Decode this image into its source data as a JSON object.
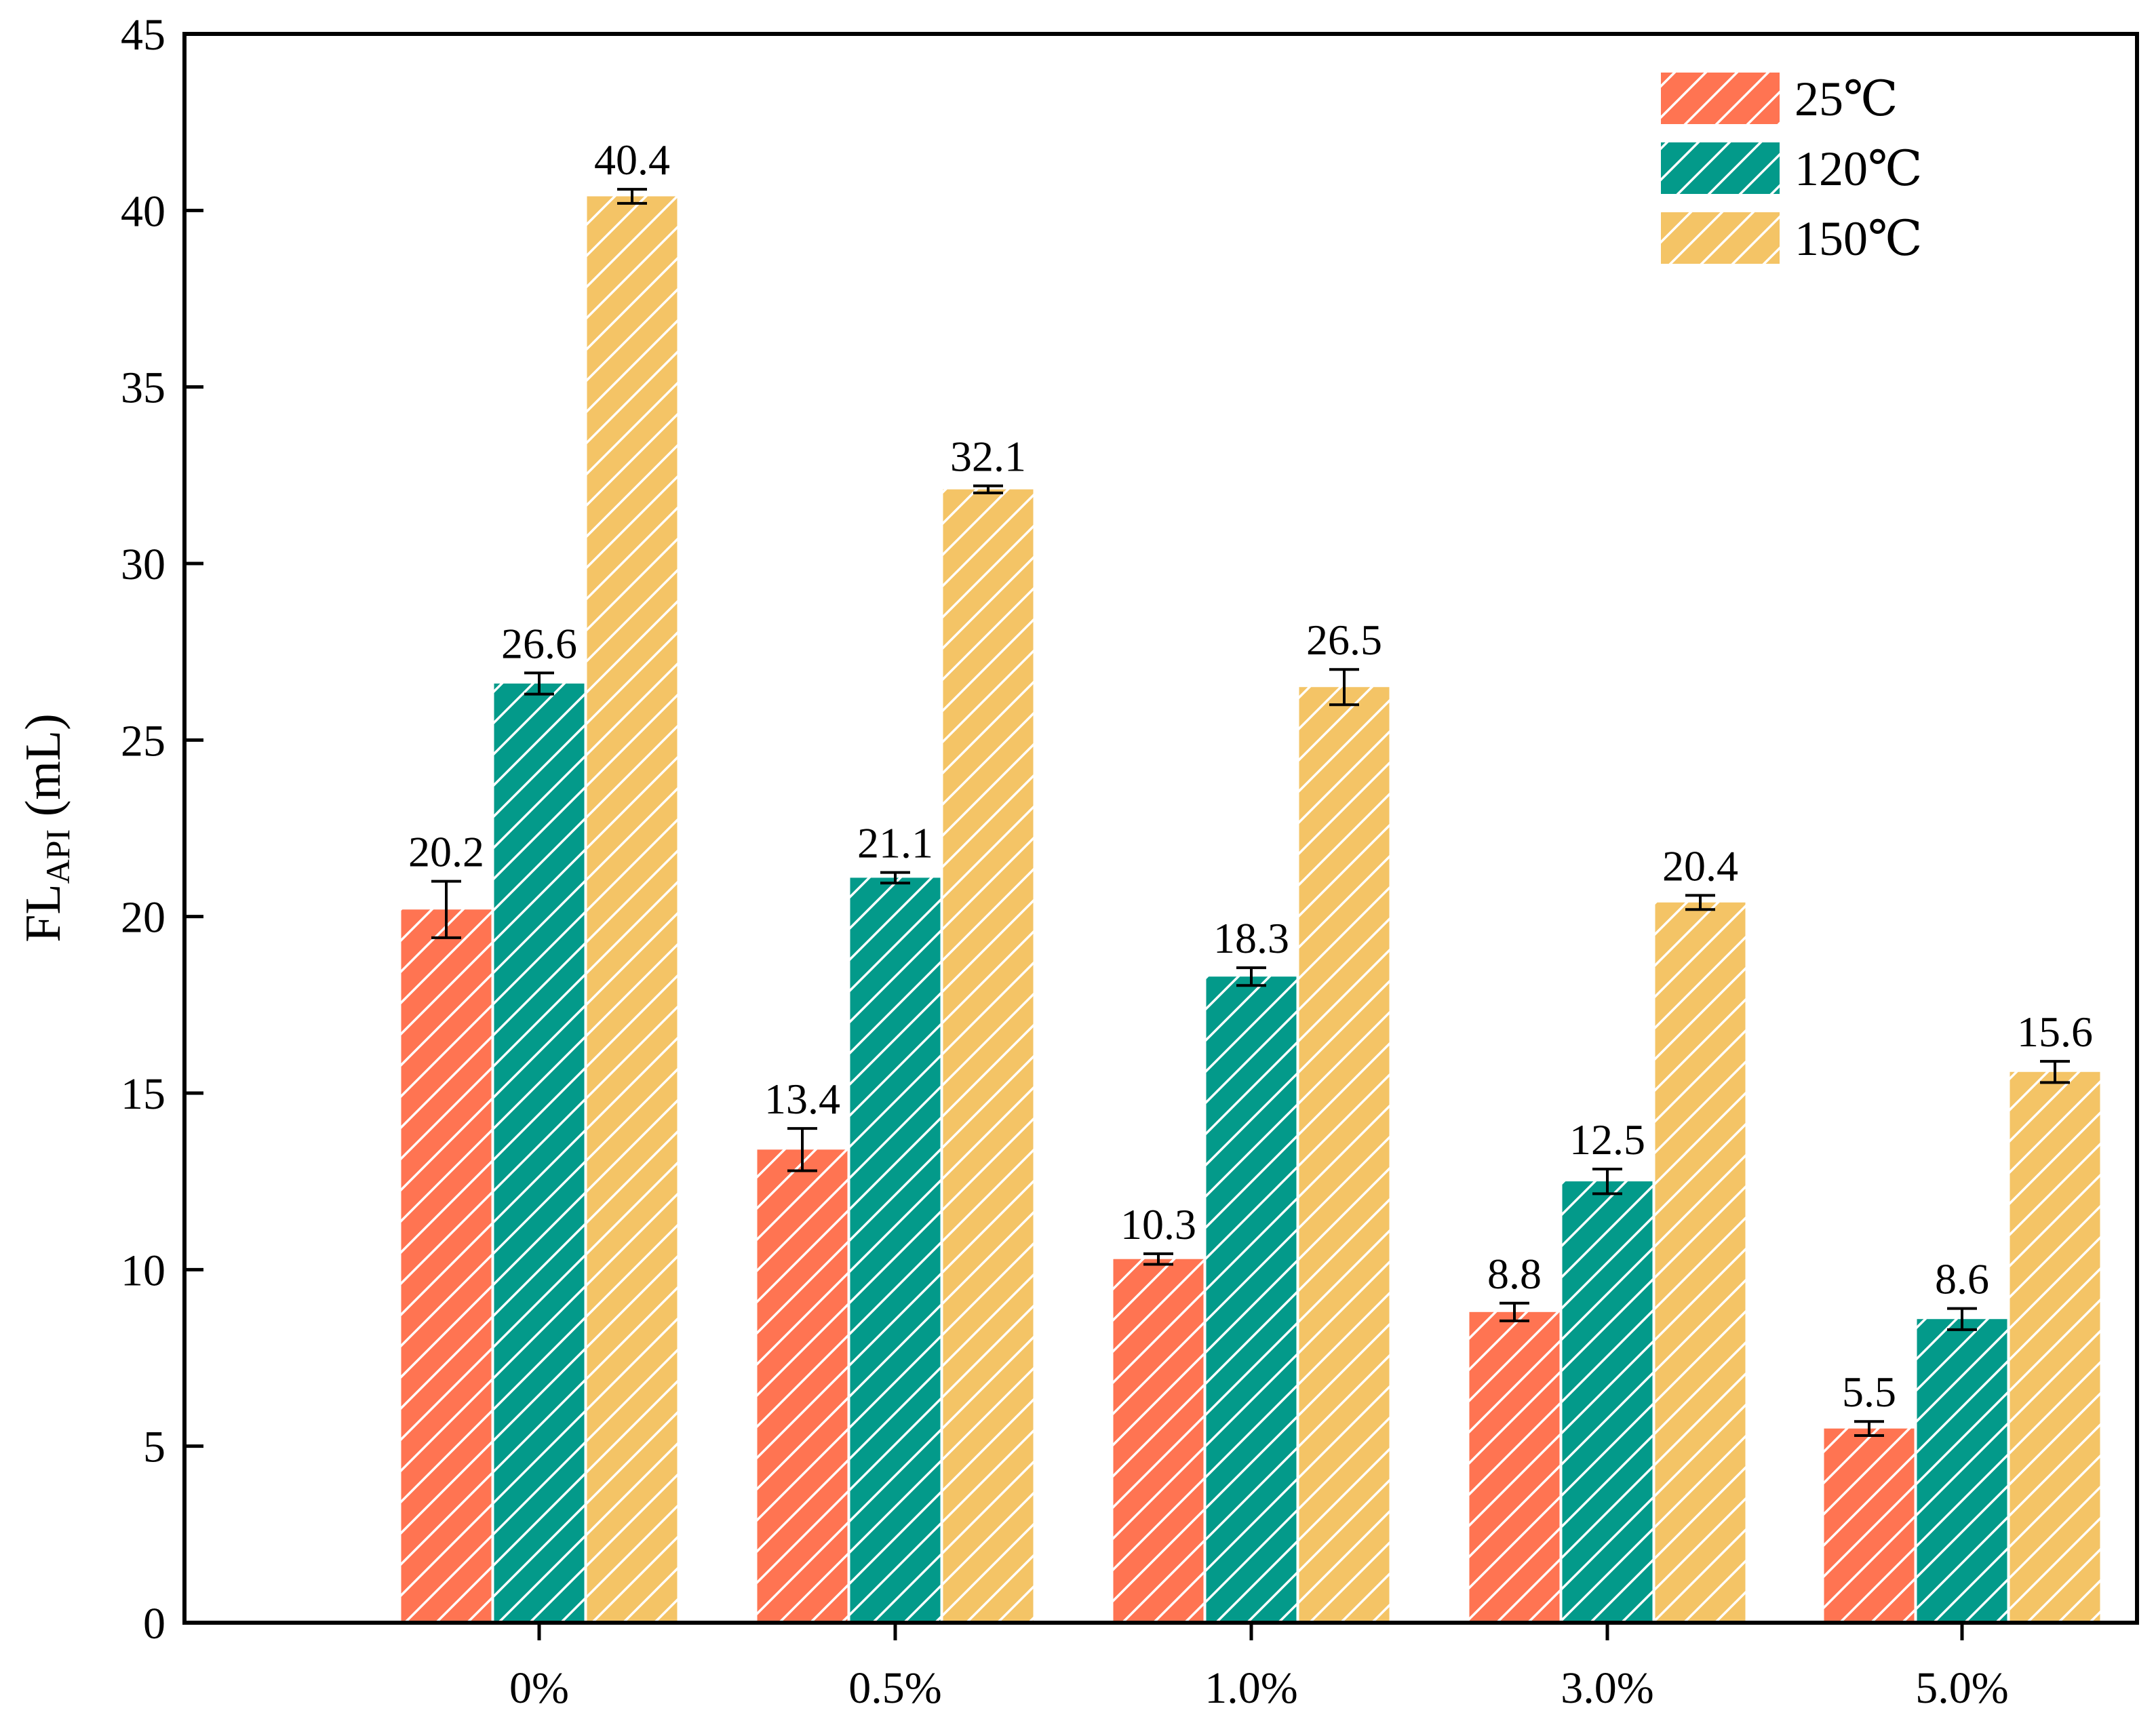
{
  "chart_data": {
    "type": "bar",
    "title": "",
    "xlabel": "",
    "ylabel": {
      "main": "FL",
      "subscript": "API",
      "unit": " (mL)"
    },
    "ylim": [
      0,
      45
    ],
    "yticks": [
      0,
      5,
      10,
      15,
      20,
      25,
      30,
      35,
      40,
      45
    ],
    "categories": [
      "0%",
      "0.5%",
      "1.0%",
      "3.0%",
      "5.0%"
    ],
    "legend_position": "top-right",
    "series": [
      {
        "name": "25℃",
        "color": "#FF7452",
        "values": [
          20.2,
          13.4,
          10.3,
          8.8,
          5.5
        ],
        "labels": [
          "20.2",
          "13.4",
          "10.3",
          "8.8",
          "5.5"
        ],
        "errors": [
          0.8,
          0.6,
          0.15,
          0.25,
          0.2
        ]
      },
      {
        "name": "120℃",
        "color": "#039A8A",
        "values": [
          26.6,
          21.1,
          18.3,
          12.5,
          8.6
        ],
        "labels": [
          "26.6",
          "21.1",
          "18.3",
          "12.5",
          "8.6"
        ],
        "errors": [
          0.3,
          0.15,
          0.25,
          0.35,
          0.3
        ]
      },
      {
        "name": "150℃",
        "color": "#F4C466",
        "values": [
          40.4,
          32.1,
          26.5,
          20.4,
          15.6
        ],
        "labels": [
          "40.4",
          "32.1",
          "26.5",
          "20.4",
          "15.6"
        ],
        "errors": [
          0.2,
          0.1,
          0.5,
          0.2,
          0.3
        ]
      }
    ]
  }
}
